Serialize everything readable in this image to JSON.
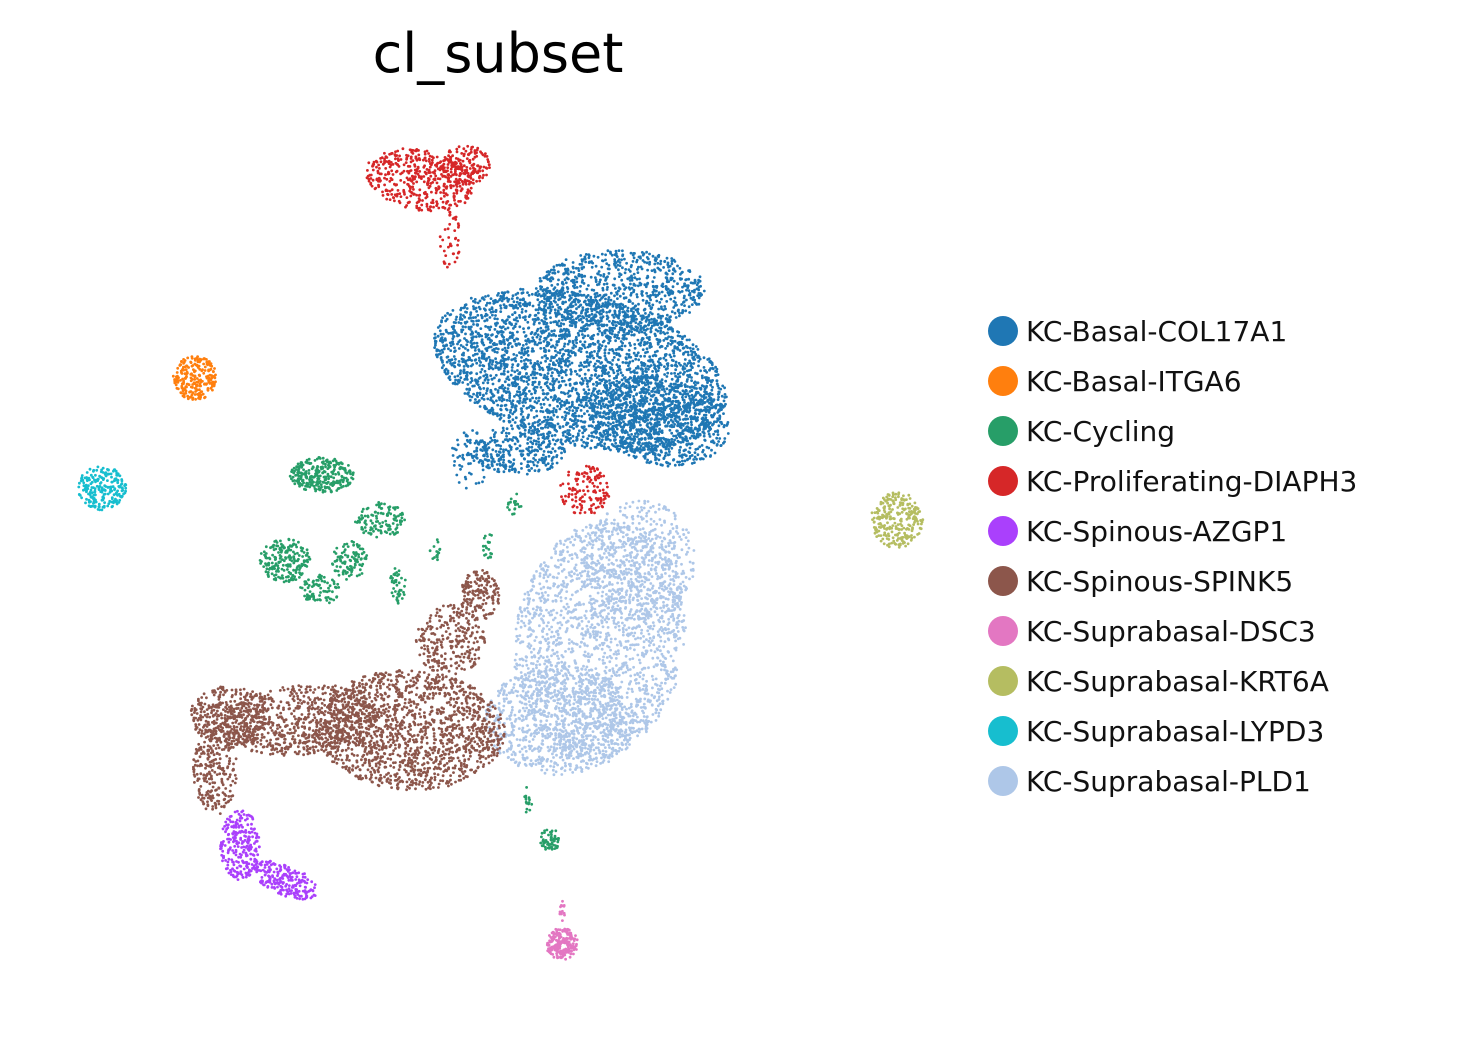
{
  "chart_data": {
    "type": "scatter",
    "title": "cl_subset",
    "xlabel": "",
    "ylabel": "",
    "grid": false,
    "axes_visible": false,
    "legend_position": "right",
    "series": [
      {
        "name": "KC-Basal-COL17A1",
        "color": "#1f77b4"
      },
      {
        "name": "KC-Basal-ITGA6",
        "color": "#ff7f0e"
      },
      {
        "name": "KC-Cycling",
        "color": "#279e68"
      },
      {
        "name": "KC-Proliferating-DIAPH3",
        "color": "#d62728"
      },
      {
        "name": "KC-Spinous-AZGP1",
        "color": "#aa40fc"
      },
      {
        "name": "KC-Spinous-SPINK5",
        "color": "#8c564b"
      },
      {
        "name": "KC-Suprabasal-DSC3",
        "color": "#e377c2"
      },
      {
        "name": "KC-Suprabasal-KRT6A",
        "color": "#b5bd61"
      },
      {
        "name": "KC-Suprabasal-LYPD3",
        "color": "#17becf"
      },
      {
        "name": "KC-Suprabasal-PLD1",
        "color": "#aec7e8"
      }
    ]
  }
}
